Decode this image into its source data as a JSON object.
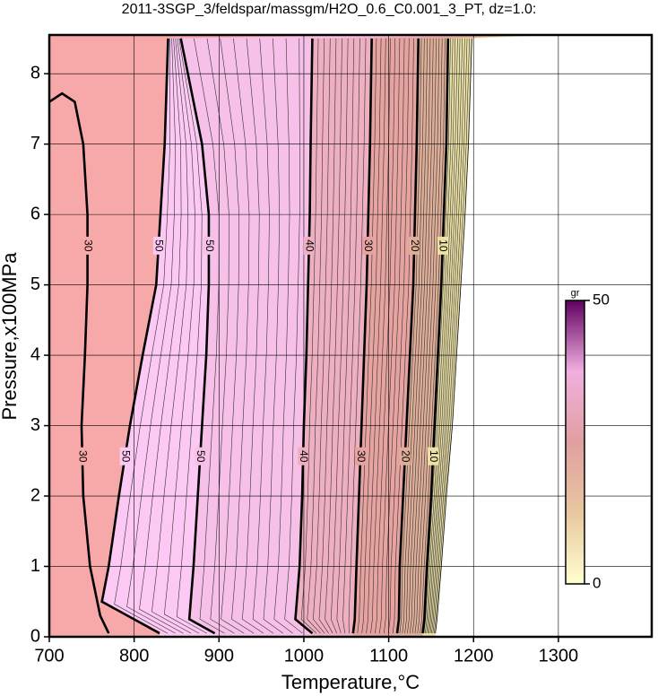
{
  "chart_data": {
    "type": "contour",
    "title": "2011-3SGP_3/feldspar/massgm/H2O_0.6_C0.001_3_PT, dz=1.0:",
    "x_label": "Temperature,°C",
    "y_label": "Pressure,x100MPa",
    "xlim": [
      700,
      1410
    ],
    "ylim": [
      0,
      8.55
    ],
    "xticks": [
      700,
      800,
      900,
      1000,
      1100,
      1200,
      1300
    ],
    "yticks": [
      0,
      1,
      2,
      3,
      4,
      5,
      6,
      7,
      8
    ],
    "grid": true,
    "background": "#f7a8a8",
    "contours": [
      {
        "level": 30,
        "bold": true,
        "labeled": true,
        "x": [
          700,
          715,
          730,
          740,
          745,
          745,
          742,
          738,
          740,
          748,
          760,
          770
        ],
        "y": [
          7.6,
          7.72,
          7.6,
          7,
          6,
          5,
          4,
          3,
          2,
          1,
          0.3,
          0.05
        ]
      },
      {
        "level": 50,
        "bold": true,
        "labeled": true,
        "fill": "#fcc8f4",
        "x": [
          830,
          762,
          770,
          782,
          795,
          810,
          826,
          831,
          836,
          840
        ],
        "y": [
          0.05,
          0.5,
          1,
          2,
          3,
          4,
          5,
          6,
          7,
          8.5
        ]
      },
      {
        "level": 50,
        "bold": true,
        "labeled": true,
        "fill": "#f6c0e8",
        "x": [
          895,
          865,
          870,
          875,
          880,
          885,
          888,
          888,
          880,
          855
        ],
        "y": [
          0.05,
          0.25,
          1,
          2,
          3,
          4,
          5,
          6,
          7,
          8.5
        ]
      },
      {
        "level": 40,
        "bold": true,
        "labeled": true,
        "fill": "#eeb0c0",
        "x": [
          1010,
          990,
          995,
          998,
          1000,
          1003,
          1005,
          1007,
          1008,
          1010
        ],
        "y": [
          0.05,
          0.25,
          1,
          2,
          3,
          4,
          5,
          6,
          7,
          8.5
        ]
      },
      {
        "level": 30,
        "bold": true,
        "labeled": true,
        "fill": "#e6a3a0",
        "x": [
          1058,
          1060,
          1062,
          1065,
          1068,
          1071,
          1074,
          1076,
          1078,
          1080
        ],
        "y": [
          0.05,
          0.25,
          1,
          2,
          3,
          4,
          5,
          6,
          7,
          8.5
        ]
      },
      {
        "level": 20,
        "bold": true,
        "labeled": true,
        "fill": "#dfae98",
        "x": [
          1110,
          1112,
          1113,
          1117,
          1121,
          1125,
          1129,
          1131,
          1133,
          1135
        ],
        "y": [
          0.05,
          0.25,
          1,
          2,
          3,
          4,
          5,
          6,
          7,
          8.5
        ]
      },
      {
        "level": 10,
        "bold": true,
        "labeled": true,
        "fill": "#ece2a6",
        "x": [
          1140,
          1142,
          1145,
          1150,
          1154,
          1158,
          1162,
          1165,
          1168,
          1170
        ],
        "y": [
          0.05,
          0.25,
          1,
          2,
          3,
          4,
          5,
          6,
          7,
          8.5
        ]
      },
      {
        "level": 0,
        "bold": false,
        "labeled": false,
        "fill": "#ffffff",
        "x": [
          1155,
          1157,
          1162,
          1168,
          1175,
          1180,
          1185,
          1190,
          1194,
          1198
        ],
        "y": [
          0.05,
          0.25,
          1,
          2,
          3,
          4,
          5,
          6,
          7,
          8.5
        ]
      }
    ],
    "colorbar": {
      "label": "gr",
      "lim": [
        0,
        50
      ],
      "ticks": [
        0,
        50
      ],
      "colors": [
        "#ffffd0",
        "#e8c8a0",
        "#e0a0a0",
        "#f0b0e0",
        "#600060"
      ]
    }
  }
}
